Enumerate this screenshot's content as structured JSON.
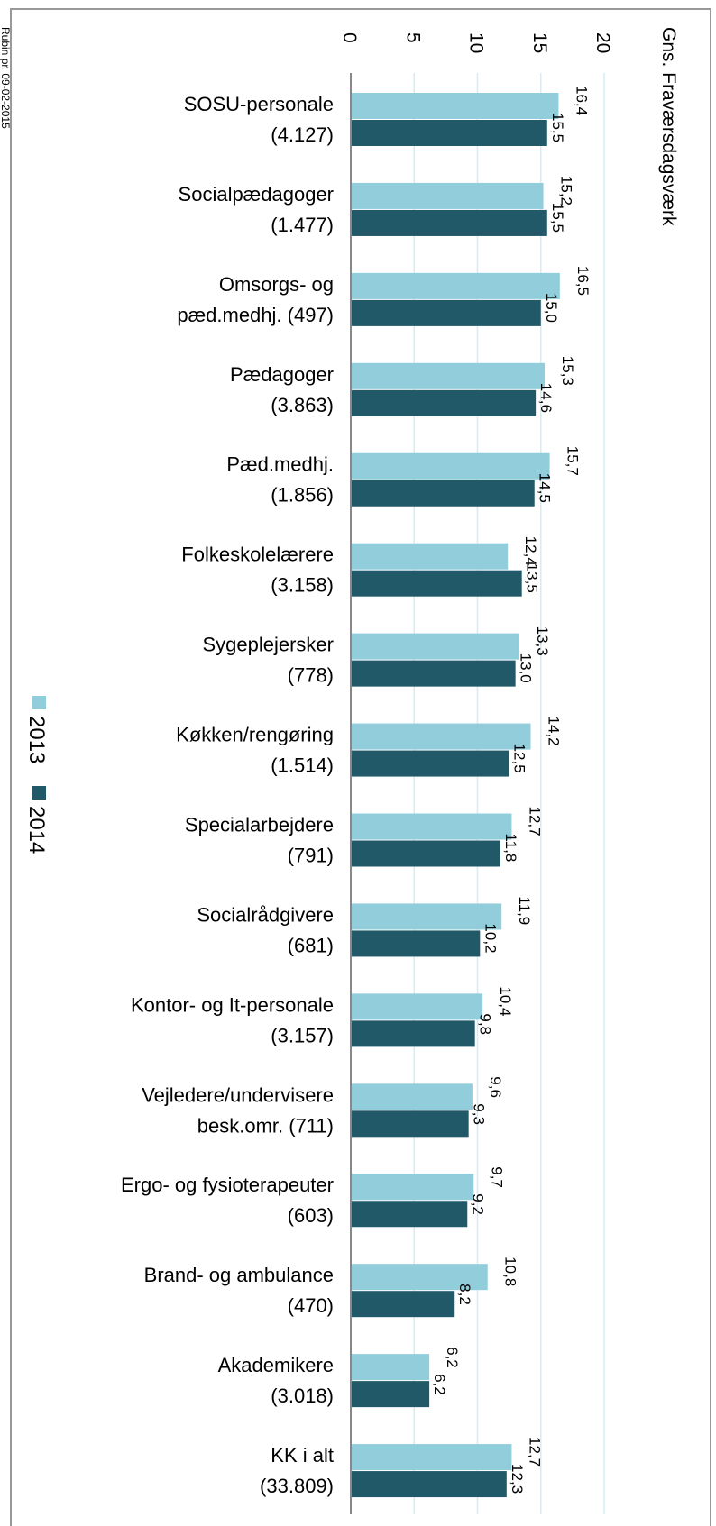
{
  "chart_data": {
    "type": "bar",
    "orientation": "horizontal",
    "axis_title": "Gns. Fraværsdagsværk",
    "footnote": "Rubin pr. 09-02-2015",
    "categories": [
      [
        "SOSU-personale",
        "(4.127)"
      ],
      [
        "Socialpædagoger",
        "(1.477)"
      ],
      [
        "Omsorgs- og",
        "pæd.medhj. (497)"
      ],
      [
        "Pædagoger",
        "(3.863)"
      ],
      [
        "Pæd.medhj.",
        "(1.856)"
      ],
      [
        "Folkeskolelærere",
        "(3.158)"
      ],
      [
        "Sygeplejersker",
        "(778)"
      ],
      [
        "Køkken/rengøring",
        "(1.514)"
      ],
      [
        "Specialarbejdere",
        "(791)"
      ],
      [
        "Socialrådgivere",
        "(681)"
      ],
      [
        "Kontor- og It-personale",
        "(3.157)"
      ],
      [
        "Vejledere/undervisere",
        "besk.omr. (711)"
      ],
      [
        "Ergo- og fysioterapeuter",
        "(603)"
      ],
      [
        "Brand- og ambulance",
        "(470)"
      ],
      [
        "Akademikere",
        "(3.018)"
      ],
      [
        "KK i alt",
        "(33.809)"
      ]
    ],
    "series": [
      {
        "name": "2013",
        "color": "#92cddc",
        "values": [
          16.4,
          15.2,
          16.5,
          15.3,
          15.7,
          12.4,
          13.3,
          14.2,
          12.7,
          11.9,
          10.4,
          9.6,
          9.7,
          10.8,
          6.2,
          12.7
        ],
        "value_labels": [
          "16,4",
          "15,2",
          "16,5",
          "15,3",
          "15,7",
          "12,4",
          "13,3",
          "14,2",
          "12,7",
          "11,9",
          "10,4",
          "9,6",
          "9,7",
          "10,8",
          "6,2",
          "12,7"
        ]
      },
      {
        "name": "2014",
        "color": "#215968",
        "values": [
          15.5,
          15.5,
          15.0,
          14.6,
          14.5,
          13.5,
          13.0,
          12.5,
          11.8,
          10.2,
          9.8,
          9.3,
          9.2,
          8.2,
          6.2,
          12.3
        ],
        "value_labels": [
          "15,5",
          "15,5",
          "15,0",
          "14,6",
          "14,5",
          "13,5",
          "13,0",
          "12,5",
          "11,8",
          "10,2",
          "9,8",
          "9,3",
          "9,2",
          "8,2",
          "6,2",
          "12,3"
        ]
      }
    ],
    "xlim": [
      0,
      20
    ],
    "xticks": [
      0,
      5,
      10,
      15,
      20
    ],
    "grid": true
  }
}
